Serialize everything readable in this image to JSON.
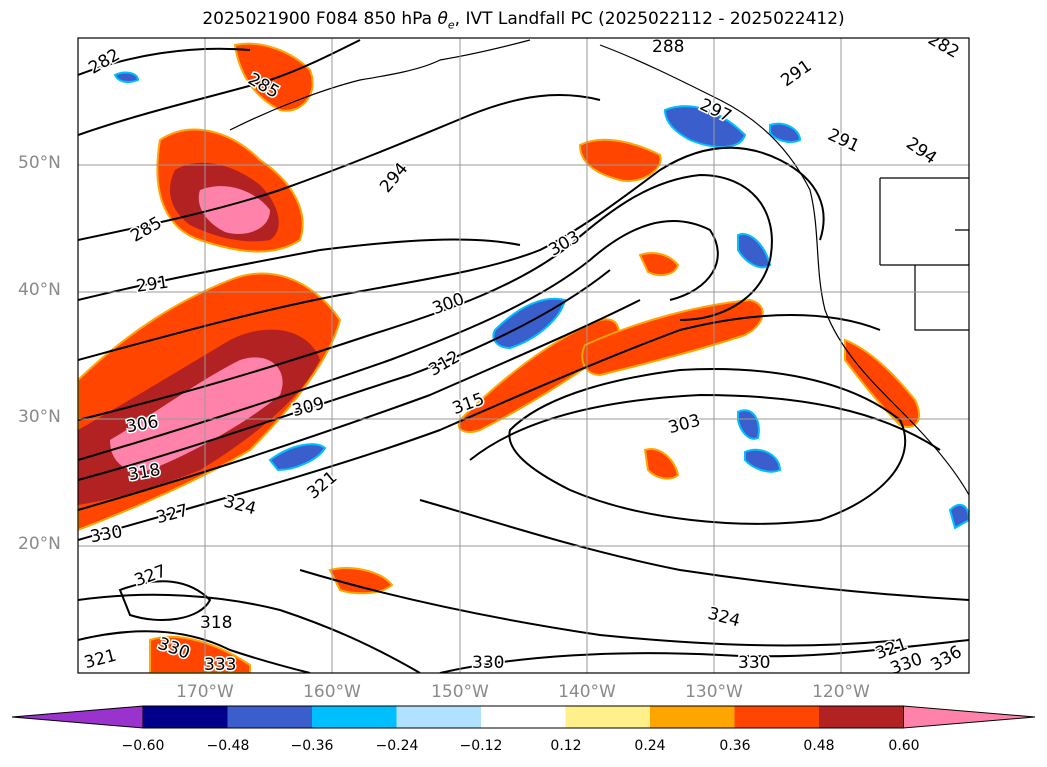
{
  "title": {
    "main": "2025021900 F084 850 hPa ",
    "theta": "θ",
    "theta_sub": "e",
    "rest": ", IVT Landfall PC (2025022112 - 2025022412)"
  },
  "lat_labels": [
    "50°N",
    "40°N",
    "30°N",
    "20°N"
  ],
  "lon_labels": [
    "170°W",
    "160°W",
    "150°W",
    "140°W",
    "130°W",
    "120°W"
  ],
  "colorbar": {
    "ticks": [
      "−0.60",
      "−0.48",
      "−0.36",
      "−0.24",
      "−0.12",
      "0.12",
      "0.24",
      "0.36",
      "0.48",
      "0.60"
    ],
    "colors": [
      "#9a32cd",
      "#00008b",
      "#3a5fcd",
      "#00bfff",
      "#b0e2ff",
      "#ffffff",
      "#fff08a",
      "#ffa500",
      "#ff4500",
      "#b22222",
      "#ff82ab"
    ]
  },
  "contour_labels": [
    "282",
    "288",
    "285",
    "291",
    "297",
    "291",
    "294",
    "282",
    "294",
    "285",
    "291",
    "303",
    "300",
    "312",
    "306",
    "309",
    "315",
    "318",
    "321",
    "303",
    "324",
    "330",
    "327",
    "327",
    "318",
    "330",
    "321",
    "333",
    "324",
    "330",
    "330",
    "321",
    "330",
    "336"
  ]
}
